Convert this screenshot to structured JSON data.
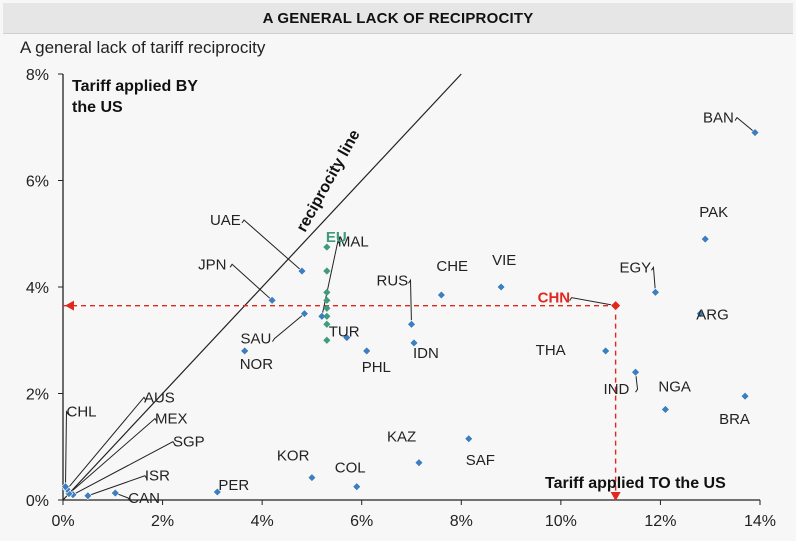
{
  "banner_title": "A GENERAL LACK OF RECIPROCITY",
  "chart_data": {
    "type": "scatter",
    "title": "A general lack of tariff reciprocity",
    "ylabel": "Tariff applied BY the US",
    "xlabel": "Tariff applied TO the US",
    "xlim": [
      0,
      14
    ],
    "ylim": [
      0,
      8
    ],
    "xticks": [
      "0%",
      "2%",
      "4%",
      "6%",
      "8%",
      "10%",
      "12%",
      "14%"
    ],
    "yticks": [
      "0%",
      "2%",
      "4%",
      "6%",
      "8%"
    ],
    "grid": false,
    "reciprocity_label": "reciprocity line",
    "colors": {
      "point": "#3d7ebf",
      "highlight": "#e0281e",
      "eu": "#3f9a7e"
    },
    "points": [
      {
        "label": "BAN",
        "x": 13.9,
        "y": 6.9
      },
      {
        "label": "PAK",
        "x": 12.9,
        "y": 4.9
      },
      {
        "label": "EGY",
        "x": 11.9,
        "y": 3.9
      },
      {
        "label": "ARG",
        "x": 12.8,
        "y": 3.5
      },
      {
        "label": "CHN",
        "x": 11.1,
        "y": 3.65,
        "highlight": true
      },
      {
        "label": "THA",
        "x": 10.9,
        "y": 2.8
      },
      {
        "label": "IND",
        "x": 11.5,
        "y": 2.4
      },
      {
        "label": "NGA",
        "x": 12.1,
        "y": 1.7
      },
      {
        "label": "BRA",
        "x": 13.7,
        "y": 1.95
      },
      {
        "label": "VIE",
        "x": 8.8,
        "y": 4.0
      },
      {
        "label": "CHE",
        "x": 7.6,
        "y": 3.85
      },
      {
        "label": "RUS",
        "x": 7.0,
        "y": 3.3
      },
      {
        "label": "IDN",
        "x": 7.05,
        "y": 2.95
      },
      {
        "label": "PHL",
        "x": 6.1,
        "y": 2.8
      },
      {
        "label": "TUR",
        "x": 5.7,
        "y": 3.05
      },
      {
        "label": "MAL",
        "x": 5.2,
        "y": 3.45
      },
      {
        "label": "UAE",
        "x": 4.8,
        "y": 4.3
      },
      {
        "label": "JPN",
        "x": 4.2,
        "y": 3.75
      },
      {
        "label": "SAU",
        "x": 4.85,
        "y": 3.5
      },
      {
        "label": "NOR",
        "x": 3.65,
        "y": 2.8
      },
      {
        "label": "KAZ",
        "x": 7.15,
        "y": 0.7
      },
      {
        "label": "SAF",
        "x": 8.15,
        "y": 1.15
      },
      {
        "label": "KOR",
        "x": 5.0,
        "y": 0.42
      },
      {
        "label": "COL",
        "x": 5.9,
        "y": 0.25
      },
      {
        "label": "PER",
        "x": 3.1,
        "y": 0.15
      },
      {
        "label": "CAN",
        "x": 1.05,
        "y": 0.13
      },
      {
        "label": "ISR",
        "x": 0.5,
        "y": 0.08
      },
      {
        "label": "SGP",
        "x": 0.2,
        "y": 0.1
      },
      {
        "label": "MEX",
        "x": 0.12,
        "y": 0.12
      },
      {
        "label": "AUS",
        "x": 0.08,
        "y": 0.2
      },
      {
        "label": "CHL",
        "x": 0.05,
        "y": 0.25
      }
    ],
    "eu_label": "EU",
    "eu_points": [
      {
        "x": 5.3,
        "y": 4.75
      },
      {
        "x": 5.3,
        "y": 4.3
      },
      {
        "x": 5.3,
        "y": 3.9
      },
      {
        "x": 5.3,
        "y": 3.75
      },
      {
        "x": 5.3,
        "y": 3.6
      },
      {
        "x": 5.3,
        "y": 3.45
      },
      {
        "x": 5.3,
        "y": 3.3
      },
      {
        "x": 5.3,
        "y": 3.0
      }
    ]
  }
}
